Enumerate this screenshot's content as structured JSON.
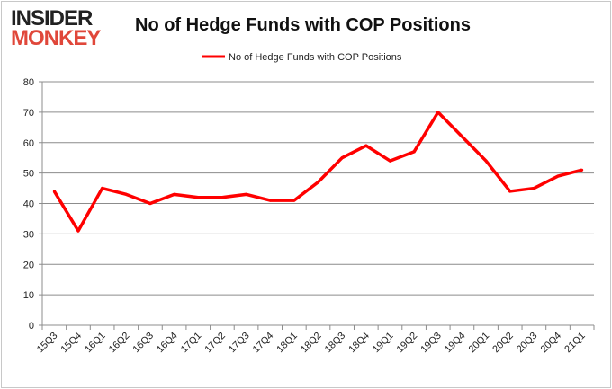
{
  "logo": {
    "line1": "INSIDER",
    "line2": "MONKEY"
  },
  "chart_data": {
    "type": "line",
    "title": "No of Hedge Funds with COP Positions",
    "xlabel": "",
    "ylabel": "",
    "legend": {
      "position": "top",
      "entries": [
        "No of Hedge Funds with COP Positions"
      ]
    },
    "categories": [
      "15Q3",
      "15Q4",
      "16Q1",
      "16Q2",
      "16Q3",
      "16Q4",
      "17Q1",
      "17Q2",
      "17Q3",
      "17Q4",
      "18Q1",
      "18Q2",
      "18Q3",
      "18Q4",
      "19Q1",
      "19Q2",
      "19Q3",
      "19Q4",
      "20Q1",
      "20Q2",
      "20Q3",
      "20Q4",
      "21Q1"
    ],
    "series": [
      {
        "name": "No of Hedge Funds with COP Positions",
        "color": "#ff0000",
        "values": [
          44,
          31,
          45,
          43,
          40,
          43,
          42,
          42,
          43,
          41,
          41,
          47,
          55,
          59,
          54,
          57,
          70,
          62,
          54,
          44,
          45,
          49,
          51
        ]
      }
    ],
    "ylim": [
      0,
      80
    ],
    "yticks": [
      0,
      10,
      20,
      30,
      40,
      50,
      60,
      70,
      80
    ],
    "grid": true
  }
}
